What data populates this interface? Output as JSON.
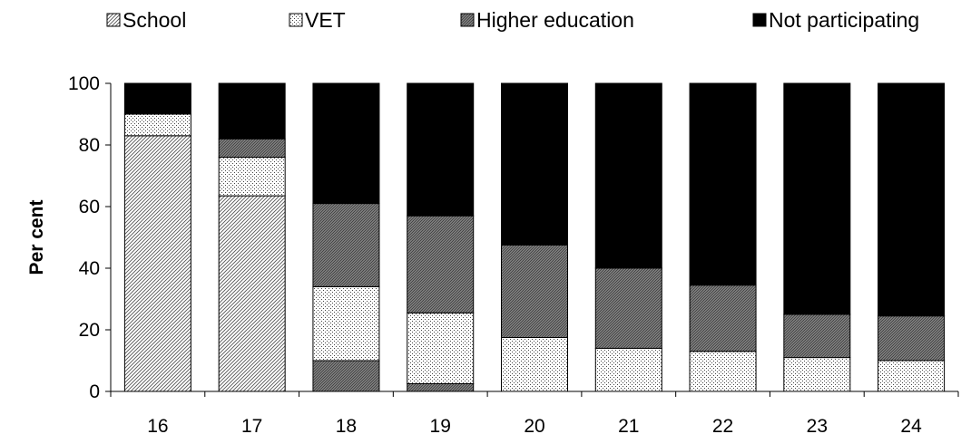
{
  "chart_data": {
    "type": "bar",
    "stacked": true,
    "categories": [
      "16",
      "17",
      "18",
      "19",
      "20",
      "21",
      "22",
      "23",
      "24"
    ],
    "series": [
      {
        "name": "School",
        "pattern": "diagonal-hatch",
        "values": [
          83,
          63.5,
          0,
          0,
          0,
          0,
          0,
          0,
          0
        ]
      },
      {
        "name": "VET",
        "pattern": "dots",
        "values": [
          7,
          12.5,
          0,
          0,
          17.5,
          14,
          13,
          11,
          10
        ]
      },
      {
        "name": "Higher education",
        "pattern": "dense-hatch",
        "values": [
          0,
          6,
          10,
          2.5,
          0,
          0,
          0,
          0,
          0
        ]
      },
      {
        "name": "VET",
        "pattern": "dots",
        "values": [
          0,
          0,
          24,
          23,
          0,
          0,
          0,
          0,
          0
        ]
      },
      {
        "name": "Higher education",
        "pattern": "dense-hatch",
        "values": [
          0,
          0,
          27,
          31.5,
          30,
          26,
          21.5,
          14,
          14.5
        ]
      },
      {
        "name": "Not participating",
        "pattern": "solid-black",
        "values": [
          10,
          18,
          39,
          43,
          52.5,
          60,
          65.5,
          75,
          75.5
        ]
      }
    ],
    "legend": [
      "School",
      "VET",
      "Higher education",
      "Not participating"
    ],
    "legend_position": "top",
    "ylabel": "Per cent",
    "xlabel": "",
    "ylim": [
      0,
      100
    ],
    "yticks": [
      "0",
      "20",
      "40",
      "60",
      "80",
      "100"
    ],
    "grid": false
  }
}
